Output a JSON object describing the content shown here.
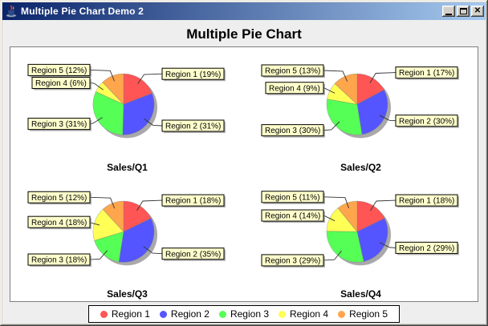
{
  "window": {
    "title": "Multiple Pie Chart Demo 2",
    "icon": "java-coffee-cup",
    "controls": {
      "close_glyph": "✕"
    }
  },
  "chart": {
    "title": "Multiple Pie Chart",
    "background": "#EEEEEE",
    "plot_background": "#FFFFFF",
    "label_box": {
      "bg": "#FFFFCC",
      "border": "#000000",
      "shadow": "#808080"
    }
  },
  "palette": [
    "#FF5555",
    "#5555FF",
    "#55FF55",
    "#FFFF55",
    "#FFA64D"
  ],
  "legend": {
    "position": "bottom",
    "items": [
      {
        "label": "Region 1",
        "color": "#FF5555"
      },
      {
        "label": "Region 2",
        "color": "#5555FF"
      },
      {
        "label": "Region 3",
        "color": "#55FF55"
      },
      {
        "label": "Region 4",
        "color": "#FFFF55"
      },
      {
        "label": "Region 5",
        "color": "#FFA64D"
      }
    ]
  },
  "chart_data": [
    {
      "type": "pie",
      "title": "Sales/Q1",
      "categories": [
        "Region 1",
        "Region 2",
        "Region 3",
        "Region 4",
        "Region 5"
      ],
      "values": [
        19,
        31,
        31,
        6,
        12
      ],
      "labels": [
        "Region 1 (19%)",
        "Region 2 (31%)",
        "Region 3 (31%)",
        "Region 4 (6%)",
        "Region 5 (12%)"
      ],
      "colors": [
        "#FF5555",
        "#5555FF",
        "#55FF55",
        "#FFFF55",
        "#FFA64D"
      ],
      "start_angle": "top",
      "direction": "clockwise"
    },
    {
      "type": "pie",
      "title": "Sales/Q2",
      "categories": [
        "Region 1",
        "Region 2",
        "Region 3",
        "Region 4",
        "Region 5"
      ],
      "values": [
        17,
        30,
        30,
        9,
        13
      ],
      "labels": [
        "Region 1 (17%)",
        "Region 2 (30%)",
        "Region 3 (30%)",
        "Region 4 (9%)",
        "Region 5 (13%)"
      ],
      "colors": [
        "#FF5555",
        "#5555FF",
        "#55FF55",
        "#FFFF55",
        "#FFA64D"
      ],
      "start_angle": "top",
      "direction": "clockwise"
    },
    {
      "type": "pie",
      "title": "Sales/Q3",
      "categories": [
        "Region 1",
        "Region 2",
        "Region 3",
        "Region 4",
        "Region 5"
      ],
      "values": [
        18,
        35,
        18,
        18,
        12
      ],
      "labels": [
        "Region 1 (18%)",
        "Region 2 (35%)",
        "Region 3 (18%)",
        "Region 4 (18%)",
        "Region 5 (12%)"
      ],
      "colors": [
        "#FF5555",
        "#5555FF",
        "#55FF55",
        "#FFFF55",
        "#FFA64D"
      ],
      "start_angle": "top",
      "direction": "clockwise"
    },
    {
      "type": "pie",
      "title": "Sales/Q4",
      "categories": [
        "Region 1",
        "Region 2",
        "Region 3",
        "Region 4",
        "Region 5"
      ],
      "values": [
        18,
        29,
        29,
        14,
        11
      ],
      "labels": [
        "Region 1 (18%)",
        "Region 2 (29%)",
        "Region 3 (29%)",
        "Region 4 (14%)",
        "Region 5 (11%)"
      ],
      "colors": [
        "#FF5555",
        "#5555FF",
        "#55FF55",
        "#FFFF55",
        "#FFA64D"
      ],
      "start_angle": "top",
      "direction": "clockwise"
    }
  ]
}
